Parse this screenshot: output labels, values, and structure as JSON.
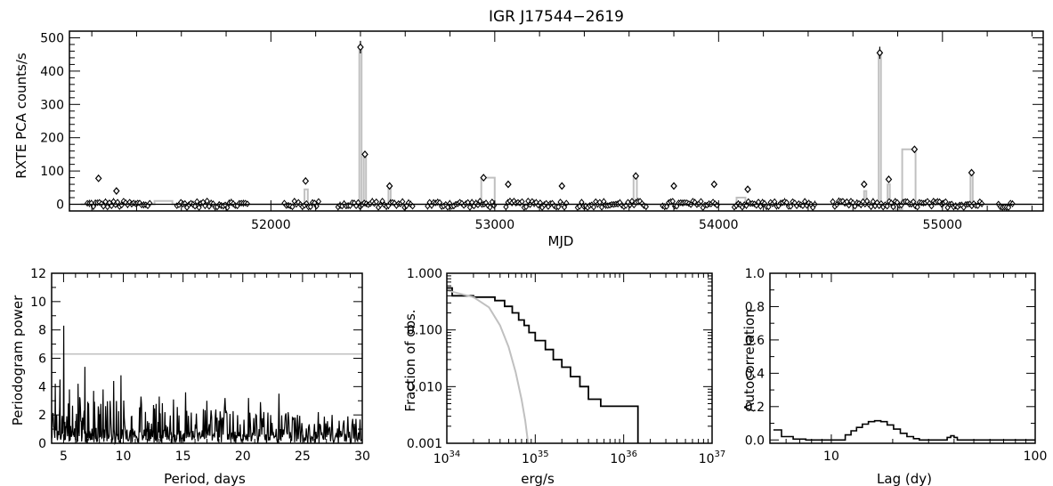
{
  "chart_data": [
    {
      "type": "scatter",
      "title": "IGR J17544−2619",
      "xlabel": "MJD",
      "ylabel": "RXTE PCA counts/s",
      "xlim": [
        51100,
        55450
      ],
      "ylim": [
        -20,
        520
      ],
      "xticks": [
        52000,
        53000,
        54000,
        55000
      ],
      "yticks": [
        0,
        100,
        200,
        300,
        400,
        500
      ],
      "colors": {
        "points": "#000000",
        "binned": "#c0c0c0"
      },
      "flares": [
        {
          "x": 51230,
          "y": 78
        },
        {
          "x": 51310,
          "y": 40
        },
        {
          "x": 52155,
          "y": 70
        },
        {
          "x": 52400,
          "y": 472
        },
        {
          "x": 52420,
          "y": 150
        },
        {
          "x": 52530,
          "y": 55
        },
        {
          "x": 52950,
          "y": 80
        },
        {
          "x": 53060,
          "y": 60
        },
        {
          "x": 53300,
          "y": 55
        },
        {
          "x": 53630,
          "y": 85
        },
        {
          "x": 53800,
          "y": 55
        },
        {
          "x": 53980,
          "y": 60
        },
        {
          "x": 54130,
          "y": 45
        },
        {
          "x": 54650,
          "y": 60
        },
        {
          "x": 54720,
          "y": 455
        },
        {
          "x": 54760,
          "y": 75
        },
        {
          "x": 54875,
          "y": 165
        },
        {
          "x": 55130,
          "y": 95
        }
      ],
      "observation_segments": [
        [
          51180,
          51460
        ],
        [
          51580,
          51900
        ],
        [
          52060,
          52220
        ],
        [
          52300,
          52640
        ],
        [
          52700,
          53000
        ],
        [
          53050,
          53320
        ],
        [
          53370,
          53680
        ],
        [
          53750,
          54000
        ],
        [
          54070,
          54430
        ],
        [
          54510,
          55180
        ],
        [
          55250,
          55320
        ]
      ],
      "binned_curve": [
        [
          51150,
          0
        ],
        [
          51250,
          0
        ],
        [
          51250,
          10
        ],
        [
          51300,
          10
        ],
        [
          51300,
          0
        ],
        [
          51480,
          0
        ],
        [
          51480,
          10
        ],
        [
          51560,
          10
        ],
        [
          51560,
          0
        ],
        [
          52150,
          0
        ],
        [
          52150,
          45
        ],
        [
          52165,
          45
        ],
        [
          52165,
          0
        ],
        [
          52395,
          0
        ],
        [
          52395,
          472
        ],
        [
          52405,
          472
        ],
        [
          52405,
          0
        ],
        [
          52415,
          0
        ],
        [
          52415,
          150
        ],
        [
          52425,
          150
        ],
        [
          52425,
          0
        ],
        [
          52525,
          0
        ],
        [
          52525,
          55
        ],
        [
          52535,
          55
        ],
        [
          52535,
          0
        ],
        [
          52940,
          0
        ],
        [
          52940,
          80
        ],
        [
          53000,
          80
        ],
        [
          53000,
          0
        ],
        [
          53620,
          0
        ],
        [
          53620,
          80
        ],
        [
          53635,
          80
        ],
        [
          53635,
          0
        ],
        [
          54080,
          0
        ],
        [
          54080,
          20
        ],
        [
          54120,
          20
        ],
        [
          54120,
          0
        ],
        [
          54650,
          0
        ],
        [
          54650,
          40
        ],
        [
          54660,
          40
        ],
        [
          54660,
          0
        ],
        [
          54715,
          0
        ],
        [
          54715,
          455
        ],
        [
          54725,
          455
        ],
        [
          54725,
          0
        ],
        [
          54755,
          0
        ],
        [
          54755,
          60
        ],
        [
          54765,
          60
        ],
        [
          54765,
          0
        ],
        [
          54790,
          0
        ],
        [
          54790,
          -15
        ],
        [
          54820,
          -15
        ],
        [
          54820,
          165
        ],
        [
          54880,
          165
        ],
        [
          54880,
          0
        ],
        [
          55125,
          0
        ],
        [
          55125,
          90
        ],
        [
          55135,
          90
        ],
        [
          55135,
          0
        ],
        [
          55400,
          0
        ]
      ]
    },
    {
      "type": "line",
      "title": "",
      "xlabel": "Period, days",
      "ylabel": "Periodogram power",
      "xlim": [
        4,
        30
      ],
      "ylim": [
        0,
        12
      ],
      "xticks": [
        5,
        10,
        15,
        20,
        25,
        30
      ],
      "yticks": [
        0,
        2,
        4,
        6,
        8,
        10,
        12
      ],
      "significance_level": 6.3,
      "peaks": [
        {
          "x": 4.3,
          "y": 4.2
        },
        {
          "x": 4.7,
          "y": 4.5
        },
        {
          "x": 5.0,
          "y": 8.3
        },
        {
          "x": 5.5,
          "y": 3.8
        },
        {
          "x": 6.2,
          "y": 4.2
        },
        {
          "x": 6.8,
          "y": 5.4
        },
        {
          "x": 7.5,
          "y": 3.7
        },
        {
          "x": 8.3,
          "y": 3.8
        },
        {
          "x": 9.2,
          "y": 4.4
        },
        {
          "x": 9.8,
          "y": 4.8
        },
        {
          "x": 11.5,
          "y": 3.3
        },
        {
          "x": 13.0,
          "y": 3.3
        },
        {
          "x": 14.2,
          "y": 3.1
        },
        {
          "x": 15.2,
          "y": 3.6
        },
        {
          "x": 17.0,
          "y": 3.0
        },
        {
          "x": 18.5,
          "y": 3.2
        },
        {
          "x": 20.5,
          "y": 3.2
        },
        {
          "x": 21.5,
          "y": 2.9
        },
        {
          "x": 23.0,
          "y": 3.5
        },
        {
          "x": 24.6,
          "y": 2.0
        },
        {
          "x": 26.3,
          "y": 2.2
        },
        {
          "x": 27.5,
          "y": 2.0
        },
        {
          "x": 28.8,
          "y": 1.9
        }
      ]
    },
    {
      "type": "line",
      "title": "",
      "xlabel": "erg/s",
      "ylabel": "Fraction of obs.",
      "xscale": "log",
      "yscale": "log",
      "xlim": [
        1e+34,
        1e+37
      ],
      "ylim": [
        0.001,
        1.0
      ],
      "xtick_labels": [
        "10^34",
        "10^35",
        "10^36",
        "10^37"
      ],
      "ytick_labels": [
        "0.001",
        "0.010",
        "0.100",
        "1.000"
      ],
      "series": [
        {
          "color": "#000000",
          "step": true,
          "x": [
            1e+34,
            1.15e+34,
            2e+34,
            3.5e+34,
            4.5e+34,
            5.5e+34,
            6.5e+34,
            7.5e+34,
            8.5e+34,
            1e+35,
            1.3e+35,
            1.6e+35,
            2e+35,
            2.5e+35,
            3.2e+35,
            4e+35,
            5.5e+35,
            1.45e+36,
            1.45e+36
          ],
          "y": [
            0.55,
            0.4,
            0.38,
            0.33,
            0.26,
            0.2,
            0.15,
            0.12,
            0.09,
            0.065,
            0.045,
            0.03,
            0.022,
            0.015,
            0.01,
            0.006,
            0.0045,
            0.0025,
            0.001
          ]
        },
        {
          "color": "#c0c0c0",
          "step": false,
          "x": [
            1e+34,
            2e+34,
            3e+34,
            4e+34,
            5e+34,
            6e+34,
            7e+34,
            7.7e+34,
            8.3e+34
          ],
          "y": [
            0.5,
            0.38,
            0.25,
            0.12,
            0.05,
            0.018,
            0.006,
            0.0025,
            0.001
          ]
        }
      ]
    },
    {
      "type": "line",
      "title": "",
      "xlabel": "Lag (dy)",
      "ylabel": "Autocorrelation",
      "xscale": "log",
      "xlim": [
        5,
        100
      ],
      "ylim": [
        -0.02,
        1.0
      ],
      "xtick_labels": [
        "10",
        "100"
      ],
      "ytick_labels": [
        "0.0",
        "0.2",
        "0.4",
        "0.6",
        "0.8",
        "1.0"
      ],
      "series": [
        {
          "color": "#000000",
          "step": true,
          "x": [
            5.2,
            5.7,
            6.5,
            7.5,
            11,
            11.7,
            12.5,
            13.3,
            14.2,
            15.2,
            16.3,
            17.5,
            18.8,
            20.2,
            21.8,
            23.5,
            25.3,
            27,
            35.5,
            37,
            38.5,
            40,
            41.5,
            100
          ],
          "y": [
            0.06,
            0.02,
            0.005,
            0.0,
            0.0,
            0.03,
            0.055,
            0.075,
            0.095,
            0.11,
            0.115,
            0.11,
            0.09,
            0.065,
            0.04,
            0.02,
            0.008,
            0.0,
            0.0,
            0.015,
            0.025,
            0.015,
            0.0,
            0.0
          ]
        }
      ]
    }
  ]
}
